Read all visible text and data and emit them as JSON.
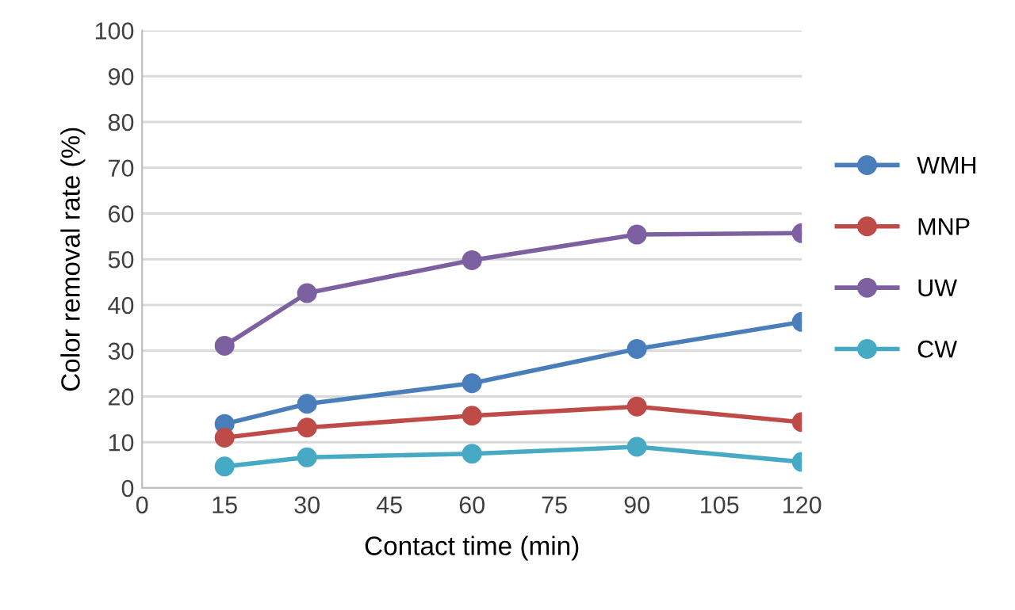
{
  "chart_data": {
    "type": "line",
    "xlabel": "Contact time (min)",
    "ylabel": "Color removal rate (%)",
    "x": [
      15,
      30,
      60,
      90,
      120
    ],
    "series": [
      {
        "name": "WMH",
        "color": "#4a7ebb",
        "values": [
          14.0,
          18.4,
          22.9,
          30.4,
          36.3
        ]
      },
      {
        "name": "MNP",
        "color": "#be4b48",
        "values": [
          11.0,
          13.2,
          15.8,
          17.8,
          14.4
        ]
      },
      {
        "name": "UW",
        "color": "#7d60a0",
        "values": [
          31.1,
          42.6,
          49.8,
          55.4,
          55.7
        ]
      },
      {
        "name": "CW",
        "color": "#46aac5",
        "values": [
          4.7,
          6.7,
          7.5,
          9.0,
          5.7
        ]
      }
    ],
    "xlim": [
      0,
      120
    ],
    "xticks": [
      0,
      15,
      30,
      45,
      60,
      75,
      90,
      105,
      120
    ],
    "ylim": [
      0,
      100
    ],
    "yticks": [
      0,
      10,
      20,
      30,
      40,
      50,
      60,
      70,
      80,
      90,
      100
    ],
    "grid": "y",
    "legend": "right",
    "marker": "circle",
    "line_style": "solid"
  }
}
